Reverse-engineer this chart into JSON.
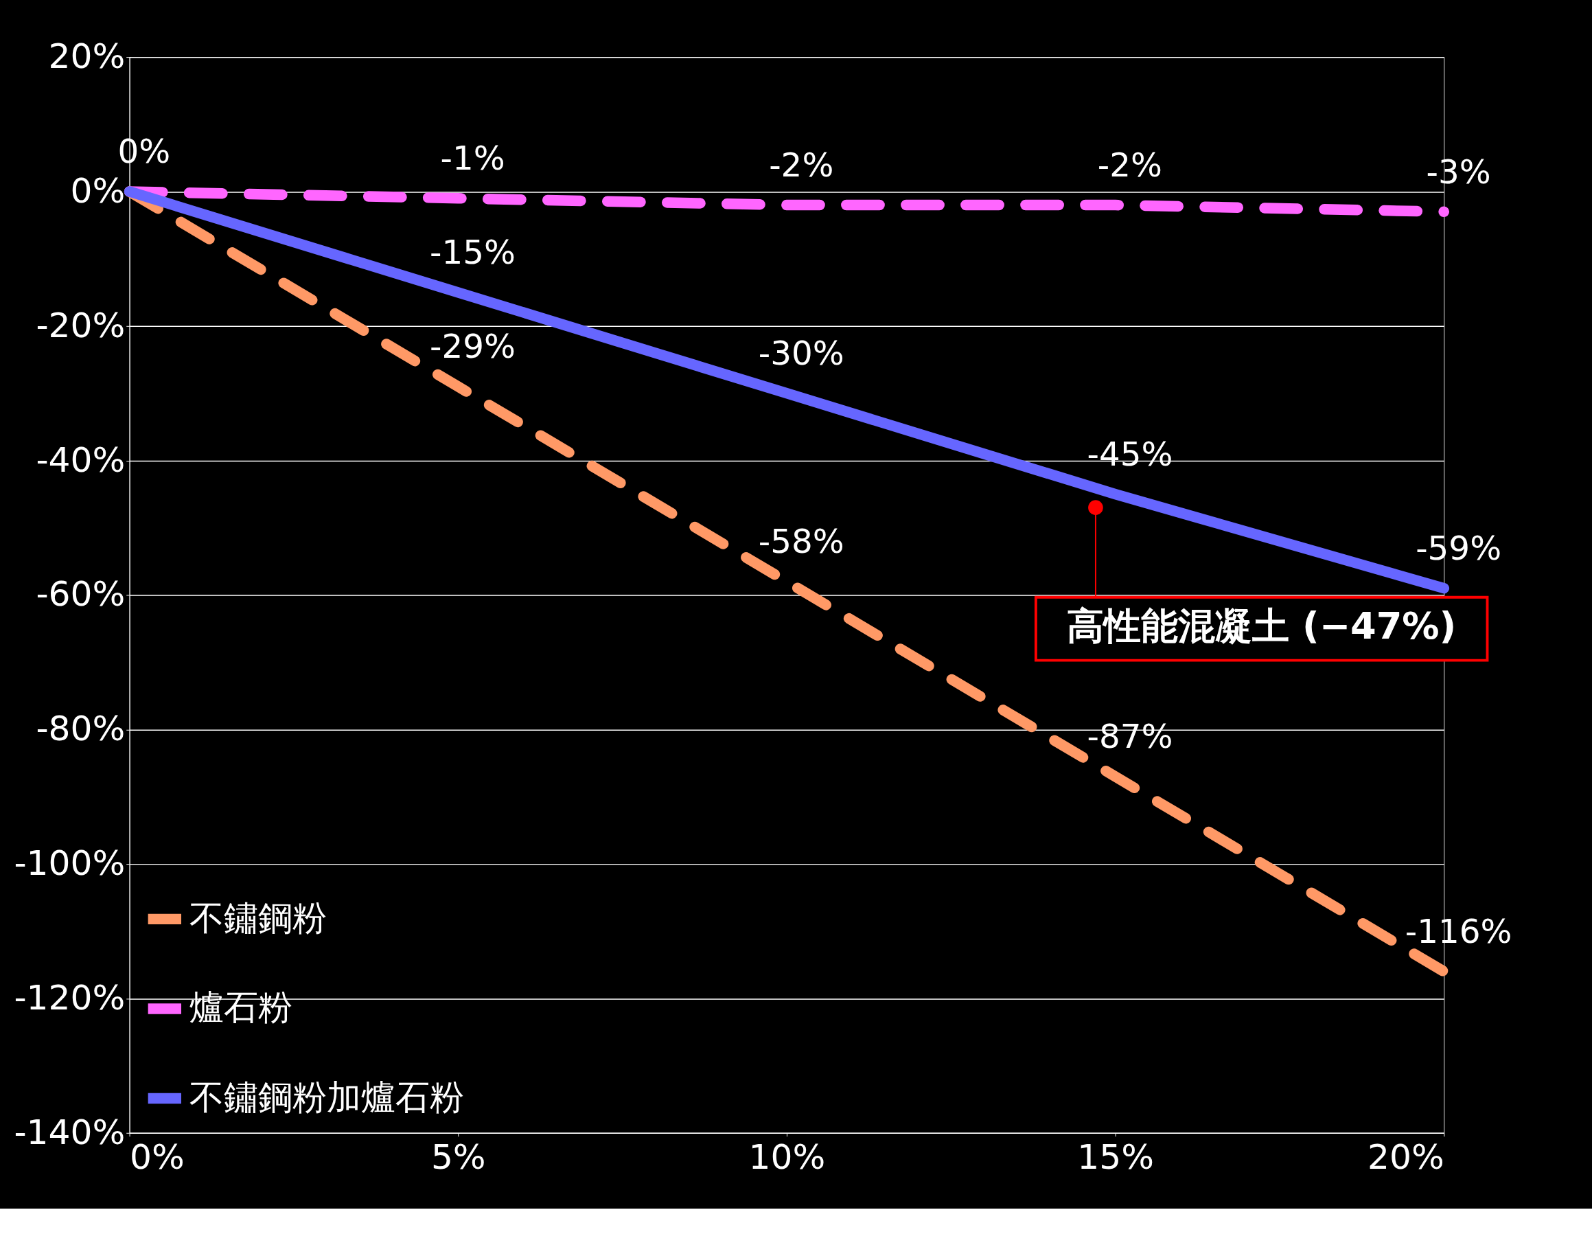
{
  "chart_data": {
    "type": "line",
    "x": [
      0,
      5,
      10,
      15,
      20
    ],
    "series": [
      {
        "name": "不鏽鋼粉",
        "color": "#ff9966",
        "line_style": "dashed",
        "values": [
          0,
          -29,
          -58,
          -87,
          -116
        ],
        "value_labels": [
          null,
          "-29%",
          "-58%",
          "-87%",
          "-116%"
        ]
      },
      {
        "name": "爐石粉",
        "color": "#ff66ff",
        "line_style": "dashed",
        "values": [
          0,
          -1,
          -2,
          -2,
          -3
        ],
        "value_labels": [
          "0%",
          "-1%",
          "-2%",
          "-2%",
          "-3%"
        ]
      },
      {
        "name": "不鏽鋼粉加爐石粉",
        "color": "#6666ff",
        "line_style": "solid",
        "values": [
          0,
          -15,
          -30,
          -45,
          -59
        ],
        "value_labels": [
          null,
          "-15%",
          "-30%",
          "-45%",
          "-59%"
        ]
      }
    ],
    "xlim": [
      0,
      20
    ],
    "xticks": [
      {
        "value": 0,
        "label": "0%"
      },
      {
        "value": 5,
        "label": "5%"
      },
      {
        "value": 10,
        "label": "10%"
      },
      {
        "value": 15,
        "label": "15%"
      },
      {
        "value": 20,
        "label": "20%"
      }
    ],
    "ylim": [
      -140,
      20
    ],
    "yticks": [
      {
        "value": -140,
        "label": "-140%"
      },
      {
        "value": -120,
        "label": "-120%"
      },
      {
        "value": -100,
        "label": "-100%"
      },
      {
        "value": -80,
        "label": "-80%"
      },
      {
        "value": -60,
        "label": "-60%"
      },
      {
        "value": -40,
        "label": "-40%"
      },
      {
        "value": -20,
        "label": "-20%"
      },
      {
        "value": 0,
        "label": "0%"
      },
      {
        "value": 20,
        "label": "20%"
      }
    ],
    "grid": "y",
    "legend": "bottom left",
    "marker": "none",
    "annotations": [
      {
        "text": "高性能混凝土 (−47%)",
        "x": 14.7,
        "y": -47
      }
    ]
  }
}
